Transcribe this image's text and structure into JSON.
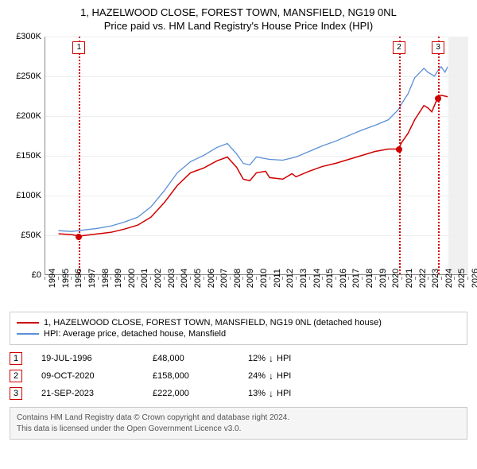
{
  "title1": "1, HAZELWOOD CLOSE, FOREST TOWN, MANSFIELD, NG19 0NL",
  "title2": "Price paid vs. HM Land Registry's House Price Index (HPI)",
  "chart": {
    "type": "line",
    "ylim": [
      0,
      300000
    ],
    "y_ticks": [
      0,
      50000,
      100000,
      150000,
      200000,
      250000,
      300000
    ],
    "y_tick_labels": [
      "£0",
      "£50K",
      "£100K",
      "£150K",
      "£200K",
      "£250K",
      "£300K"
    ],
    "x_min": 1994,
    "x_max": 2026,
    "x_ticks": [
      1994,
      1995,
      1996,
      1997,
      1998,
      1999,
      2000,
      2001,
      2002,
      2003,
      2004,
      2005,
      2006,
      2007,
      2008,
      2009,
      2010,
      2011,
      2012,
      2013,
      2014,
      2015,
      2016,
      2017,
      2018,
      2019,
      2020,
      2021,
      2022,
      2023,
      2024,
      2025,
      2026
    ],
    "shaded_range": [
      2024.5,
      2026
    ],
    "background_color": "#ffffff",
    "grid_color": "#eeeeee",
    "shaded_color": "#f0f0f0",
    "series": {
      "price_paid": {
        "color": "#d10000",
        "width": 1.5,
        "points": [
          [
            1995.0,
            51000
          ],
          [
            1996.0,
            50000
          ],
          [
            1996.55,
            48000
          ],
          [
            1997.0,
            49000
          ],
          [
            1998.0,
            51000
          ],
          [
            1999.0,
            53000
          ],
          [
            2000.0,
            57000
          ],
          [
            2001.0,
            62000
          ],
          [
            2002.0,
            72000
          ],
          [
            2003.0,
            90000
          ],
          [
            2004.0,
            112000
          ],
          [
            2005.0,
            128000
          ],
          [
            2006.0,
            134000
          ],
          [
            2007.0,
            143000
          ],
          [
            2007.8,
            148000
          ],
          [
            2008.5,
            135000
          ],
          [
            2009.0,
            120000
          ],
          [
            2009.5,
            118000
          ],
          [
            2010.0,
            128000
          ],
          [
            2010.7,
            130000
          ],
          [
            2011.0,
            122000
          ],
          [
            2012.0,
            120000
          ],
          [
            2012.7,
            127000
          ],
          [
            2013.0,
            123000
          ],
          [
            2014.0,
            130000
          ],
          [
            2015.0,
            136000
          ],
          [
            2016.0,
            140000
          ],
          [
            2017.0,
            145000
          ],
          [
            2018.0,
            150000
          ],
          [
            2019.0,
            155000
          ],
          [
            2020.0,
            158000
          ],
          [
            2020.77,
            158000
          ],
          [
            2021.0,
            166000
          ],
          [
            2021.5,
            178000
          ],
          [
            2022.0,
            195000
          ],
          [
            2022.7,
            213000
          ],
          [
            2023.0,
            210000
          ],
          [
            2023.3,
            205000
          ],
          [
            2023.72,
            222000
          ],
          [
            2024.0,
            226000
          ],
          [
            2024.5,
            224000
          ]
        ]
      },
      "hpi": {
        "color": "#5a8fd6",
        "width": 1.3,
        "points": [
          [
            1995.0,
            55000
          ],
          [
            1996.0,
            54000
          ],
          [
            1997.0,
            56000
          ],
          [
            1998.0,
            58000
          ],
          [
            1999.0,
            61000
          ],
          [
            2000.0,
            66000
          ],
          [
            2001.0,
            72000
          ],
          [
            2002.0,
            85000
          ],
          [
            2003.0,
            105000
          ],
          [
            2004.0,
            128000
          ],
          [
            2005.0,
            142000
          ],
          [
            2006.0,
            150000
          ],
          [
            2007.0,
            160000
          ],
          [
            2007.8,
            165000
          ],
          [
            2008.5,
            152000
          ],
          [
            2009.0,
            140000
          ],
          [
            2009.5,
            138000
          ],
          [
            2010.0,
            148000
          ],
          [
            2011.0,
            145000
          ],
          [
            2012.0,
            144000
          ],
          [
            2013.0,
            148000
          ],
          [
            2014.0,
            155000
          ],
          [
            2015.0,
            162000
          ],
          [
            2016.0,
            168000
          ],
          [
            2017.0,
            175000
          ],
          [
            2018.0,
            182000
          ],
          [
            2019.0,
            188000
          ],
          [
            2020.0,
            195000
          ],
          [
            2020.77,
            208000
          ],
          [
            2021.0,
            215000
          ],
          [
            2021.5,
            228000
          ],
          [
            2022.0,
            248000
          ],
          [
            2022.7,
            260000
          ],
          [
            2023.0,
            255000
          ],
          [
            2023.5,
            250000
          ],
          [
            2023.72,
            256000
          ],
          [
            2024.0,
            262000
          ],
          [
            2024.3,
            255000
          ],
          [
            2024.5,
            262000
          ]
        ]
      }
    },
    "markers": [
      {
        "n": "1",
        "x": 1996.55,
        "y": 48000,
        "color": "#d10000"
      },
      {
        "n": "2",
        "x": 2020.77,
        "y": 158000,
        "color": "#d10000"
      },
      {
        "n": "3",
        "x": 2023.72,
        "y": 222000,
        "color": "#d10000"
      }
    ]
  },
  "legend": {
    "series1": {
      "label": "1, HAZELWOOD CLOSE, FOREST TOWN, MANSFIELD, NG19 0NL (detached house)",
      "color": "#d10000"
    },
    "series2": {
      "label": "HPI: Average price, detached house, Mansfield",
      "color": "#5a8fd6"
    }
  },
  "marker_table": [
    {
      "n": "1",
      "color": "#d10000",
      "date": "19-JUL-1996",
      "price": "£48,000",
      "delta": "12%",
      "direction": "↓",
      "suffix": "HPI"
    },
    {
      "n": "2",
      "color": "#d10000",
      "date": "09-OCT-2020",
      "price": "£158,000",
      "delta": "24%",
      "direction": "↓",
      "suffix": "HPI"
    },
    {
      "n": "3",
      "color": "#d10000",
      "date": "21-SEP-2023",
      "price": "£222,000",
      "delta": "13%",
      "direction": "↓",
      "suffix": "HPI"
    }
  ],
  "footer": {
    "line1": "Contains HM Land Registry data © Crown copyright and database right 2024.",
    "line2": "This data is licensed under the Open Government Licence v3.0."
  }
}
